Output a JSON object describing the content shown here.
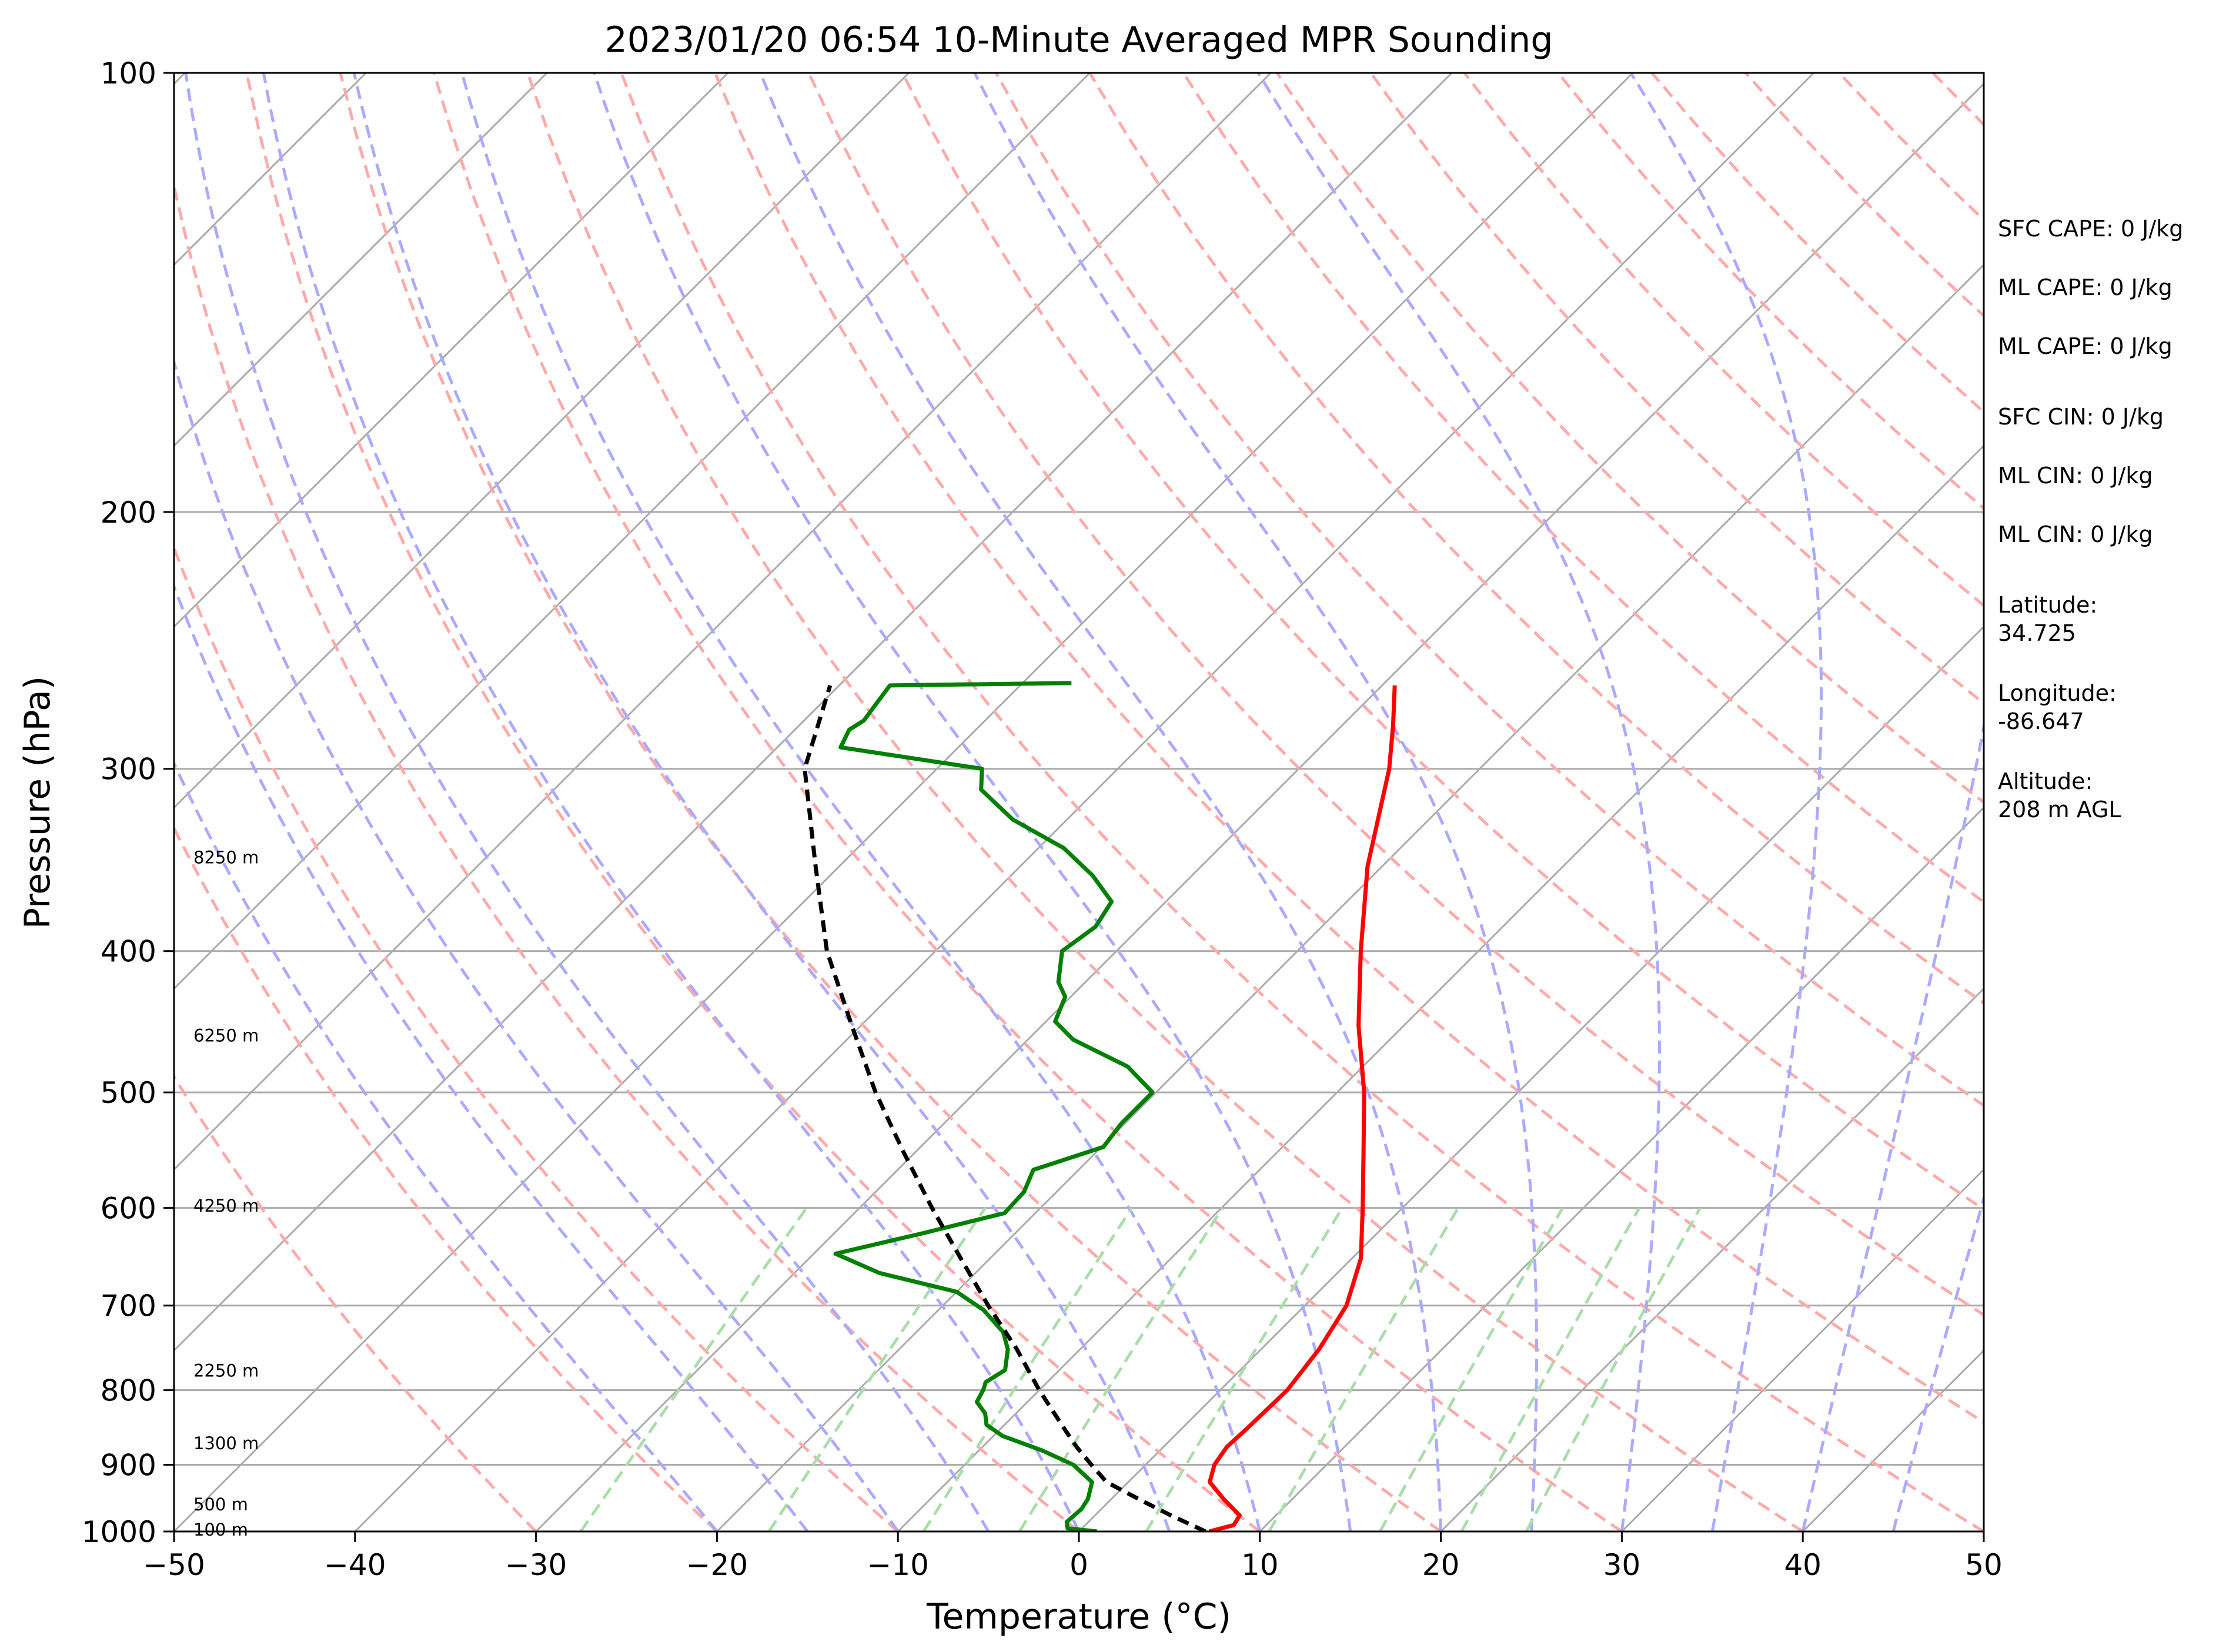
{
  "chart_data": {
    "type": "line",
    "title": "2023/01/20 06:54 10-Minute Averaged MPR Sounding",
    "xlabel": "Temperature (°C)",
    "ylabel": "Pressure (hPa)",
    "xlim": [
      -50,
      50
    ],
    "ylim": [
      1000,
      100
    ],
    "y_scale": "log",
    "skew": true,
    "grid": true,
    "x_ticks": [
      "−50",
      "−40",
      "−30",
      "−20",
      "−10",
      "0",
      "10",
      "20",
      "30",
      "40",
      "50"
    ],
    "x_tick_values": [
      -50,
      -40,
      -30,
      -20,
      -10,
      0,
      10,
      20,
      30,
      40,
      50
    ],
    "y_ticks": [
      "100",
      "200",
      "300",
      "400",
      "500",
      "600",
      "700",
      "800",
      "900",
      "1000"
    ],
    "y_tick_values": [
      100,
      200,
      300,
      400,
      500,
      600,
      700,
      800,
      900,
      1000
    ],
    "series": [
      {
        "color": "#ff0000",
        "points": [
          [
            1000,
            7.2
          ],
          [
            990,
            8.2
          ],
          [
            975,
            8.0
          ],
          [
            950,
            6.2
          ],
          [
            925,
            4.5
          ],
          [
            900,
            3.8
          ],
          [
            875,
            3.5
          ],
          [
            850,
            3.6
          ],
          [
            800,
            3.7
          ],
          [
            750,
            3.2
          ],
          [
            700,
            2.3
          ],
          [
            650,
            0.5
          ],
          [
            600,
            -2.2
          ],
          [
            550,
            -5.2
          ],
          [
            500,
            -8.5
          ],
          [
            450,
            -12.5
          ],
          [
            400,
            -16.5
          ],
          [
            350,
            -20.8
          ],
          [
            300,
            -25.0
          ],
          [
            280,
            -27.2
          ],
          [
            263,
            -29.3
          ]
        ]
      },
      {
        "color": "#008000",
        "points": [
          [
            1000,
            1.0
          ],
          [
            995,
            -0.8
          ],
          [
            985,
            -1.2
          ],
          [
            965,
            -1.1
          ],
          [
            950,
            -1.3
          ],
          [
            925,
            -2.0
          ],
          [
            900,
            -4.0
          ],
          [
            880,
            -6.5
          ],
          [
            860,
            -9.5
          ],
          [
            845,
            -11.0
          ],
          [
            830,
            -11.7
          ],
          [
            815,
            -12.8
          ],
          [
            800,
            -13.1
          ],
          [
            790,
            -13.4
          ],
          [
            775,
            -13.0
          ],
          [
            750,
            -14.0
          ],
          [
            730,
            -15.2
          ],
          [
            705,
            -17.5
          ],
          [
            685,
            -20.0
          ],
          [
            665,
            -25.3
          ],
          [
            645,
            -28.8
          ],
          [
            625,
            -25.2
          ],
          [
            605,
            -21.7
          ],
          [
            585,
            -21.8
          ],
          [
            565,
            -22.5
          ],
          [
            545,
            -19.9
          ],
          [
            525,
            -20.2
          ],
          [
            500,
            -20.2
          ],
          [
            480,
            -23.0
          ],
          [
            460,
            -27.5
          ],
          [
            447,
            -29.5
          ],
          [
            430,
            -30.3
          ],
          [
            420,
            -31.5
          ],
          [
            400,
            -33.0
          ],
          [
            385,
            -32.5
          ],
          [
            370,
            -33.0
          ],
          [
            355,
            -35.5
          ],
          [
            340,
            -38.6
          ],
          [
            325,
            -43.0
          ],
          [
            310,
            -46.4
          ],
          [
            300,
            -47.5
          ],
          [
            290,
            -56.5
          ],
          [
            282,
            -57.0
          ],
          [
            278,
            -56.7
          ],
          [
            263,
            -57.2
          ],
          [
            262,
            -47.3
          ]
        ]
      },
      {
        "color": "#000000",
        "dashed": true,
        "points": [
          [
            1000,
            7.0
          ],
          [
            975,
            4.2
          ],
          [
            950,
            1.5
          ],
          [
            925,
            -1.2
          ],
          [
            900,
            -3.0
          ],
          [
            875,
            -4.8
          ],
          [
            850,
            -6.5
          ],
          [
            800,
            -10.0
          ],
          [
            750,
            -13.5
          ],
          [
            700,
            -17.5
          ],
          [
            650,
            -21.6
          ],
          [
            600,
            -26.0
          ],
          [
            550,
            -30.6
          ],
          [
            500,
            -35.5
          ],
          [
            450,
            -40.5
          ],
          [
            400,
            -46.0
          ],
          [
            350,
            -51.3
          ],
          [
            300,
            -57.3
          ],
          [
            263,
            -60.5
          ]
        ]
      }
    ],
    "height_labels": [
      {
        "text": "8250 m",
        "p": 345
      },
      {
        "text": "6250 m",
        "p": 457
      },
      {
        "text": "4250 m",
        "p": 598
      },
      {
        "text": "2250 m",
        "p": 776
      },
      {
        "text": "1300 m",
        "p": 870
      },
      {
        "text": "500 m",
        "p": 958
      },
      {
        "text": "100 m",
        "p": 997
      }
    ],
    "annotations": [
      {
        "text": "SFC CAPE: 0 J/kg"
      },
      {
        "text": "ML CAPE: 0 J/kg"
      },
      {
        "text": "ML CAPE: 0 J/kg"
      },
      {
        "text": "SFC CIN: 0 J/kg"
      },
      {
        "text": "ML CIN: 0 J/kg"
      },
      {
        "text": "ML CIN: 0 J/kg"
      },
      {
        "text": "Latitude:\n34.725"
      },
      {
        "text": "Longitude:\n-86.647"
      },
      {
        "text": "Altitude:\n208 m AGL"
      }
    ],
    "background_lines": {
      "isotherm_color": "#aaaaaa",
      "dry_adiabat_color": "#ffaaaa",
      "moist_adiabat_color": "#aaaaff",
      "mixing_ratio_color": "#aaddaa"
    }
  }
}
